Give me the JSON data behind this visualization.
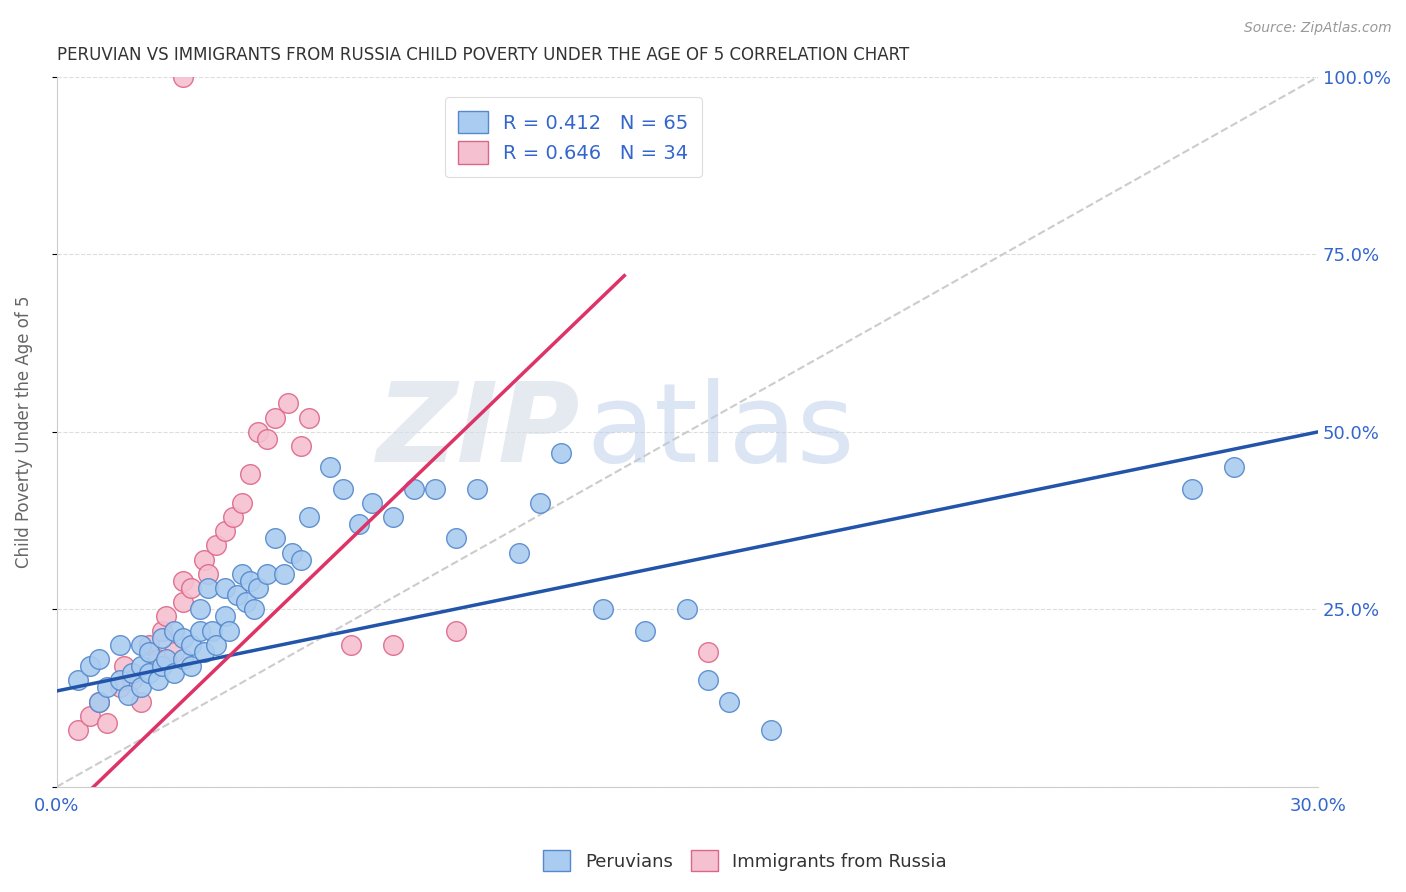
{
  "title": "PERUVIAN VS IMMIGRANTS FROM RUSSIA CHILD POVERTY UNDER THE AGE OF 5 CORRELATION CHART",
  "source": "Source: ZipAtlas.com",
  "ylabel": "Child Poverty Under the Age of 5",
  "xlim": [
    0.0,
    0.3
  ],
  "ylim": [
    0.0,
    1.0
  ],
  "xticks": [
    0.0,
    0.05,
    0.1,
    0.15,
    0.2,
    0.25,
    0.3
  ],
  "xticklabels": [
    "0.0%",
    "",
    "",
    "",
    "",
    "",
    "30.0%"
  ],
  "yticks": [
    0.0,
    0.25,
    0.5,
    0.75,
    1.0
  ],
  "yticklabels": [
    "",
    "25.0%",
    "50.0%",
    "75.0%",
    "100.0%"
  ],
  "peruvian_color": "#aaccf0",
  "russia_color": "#f5c0d0",
  "peruvian_edge": "#5588cc",
  "russia_edge": "#dd6688",
  "trend_blue_color": "#2255aa",
  "trend_pink_color": "#dd3366",
  "ref_line_color": "#cccccc",
  "watermark_zip": "ZIP",
  "watermark_atlas": "atlas",
  "peruvian_x": [
    0.005,
    0.008,
    0.01,
    0.01,
    0.012,
    0.015,
    0.015,
    0.017,
    0.018,
    0.02,
    0.02,
    0.02,
    0.022,
    0.022,
    0.024,
    0.025,
    0.025,
    0.026,
    0.028,
    0.028,
    0.03,
    0.03,
    0.032,
    0.032,
    0.034,
    0.034,
    0.035,
    0.036,
    0.037,
    0.038,
    0.04,
    0.04,
    0.041,
    0.043,
    0.044,
    0.045,
    0.046,
    0.047,
    0.048,
    0.05,
    0.052,
    0.054,
    0.056,
    0.058,
    0.06,
    0.065,
    0.068,
    0.072,
    0.075,
    0.08,
    0.085,
    0.09,
    0.095,
    0.1,
    0.11,
    0.115,
    0.12,
    0.13,
    0.14,
    0.15,
    0.155,
    0.16,
    0.17,
    0.27,
    0.28
  ],
  "peruvian_y": [
    0.15,
    0.17,
    0.12,
    0.18,
    0.14,
    0.15,
    0.2,
    0.13,
    0.16,
    0.14,
    0.17,
    0.2,
    0.16,
    0.19,
    0.15,
    0.17,
    0.21,
    0.18,
    0.16,
    0.22,
    0.18,
    0.21,
    0.2,
    0.17,
    0.22,
    0.25,
    0.19,
    0.28,
    0.22,
    0.2,
    0.24,
    0.28,
    0.22,
    0.27,
    0.3,
    0.26,
    0.29,
    0.25,
    0.28,
    0.3,
    0.35,
    0.3,
    0.33,
    0.32,
    0.38,
    0.45,
    0.42,
    0.37,
    0.4,
    0.38,
    0.42,
    0.42,
    0.35,
    0.42,
    0.33,
    0.4,
    0.47,
    0.25,
    0.22,
    0.25,
    0.15,
    0.12,
    0.08,
    0.42,
    0.45
  ],
  "russia_x": [
    0.005,
    0.008,
    0.01,
    0.012,
    0.015,
    0.016,
    0.018,
    0.02,
    0.022,
    0.024,
    0.025,
    0.026,
    0.028,
    0.03,
    0.03,
    0.032,
    0.035,
    0.036,
    0.038,
    0.04,
    0.042,
    0.044,
    0.046,
    0.048,
    0.05,
    0.052,
    0.055,
    0.058,
    0.06,
    0.07,
    0.08,
    0.095,
    0.155,
    0.03
  ],
  "russia_y": [
    0.08,
    0.1,
    0.12,
    0.09,
    0.14,
    0.17,
    0.15,
    0.12,
    0.2,
    0.18,
    0.22,
    0.24,
    0.19,
    0.26,
    0.29,
    0.28,
    0.32,
    0.3,
    0.34,
    0.36,
    0.38,
    0.4,
    0.44,
    0.5,
    0.49,
    0.52,
    0.54,
    0.48,
    0.52,
    0.2,
    0.2,
    0.22,
    0.19,
    1.0
  ],
  "background_color": "#ffffff",
  "grid_color": "#dddddd",
  "legend_label_1": "R = 0.412   N = 65",
  "legend_label_2": "R = 0.646   N = 34"
}
